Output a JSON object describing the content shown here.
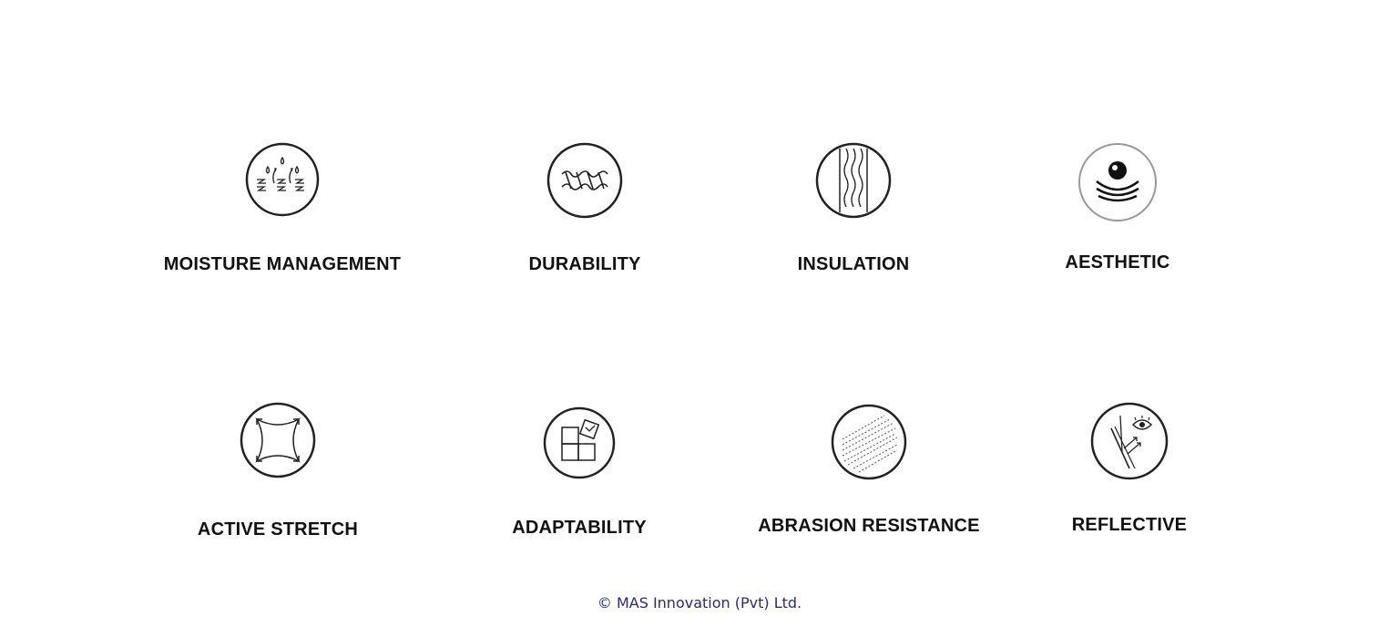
{
  "features": {
    "moisture": {
      "label": "MOISTURE MANAGEMENT",
      "icon": "moisture-management-icon"
    },
    "durability": {
      "label": "DURABILITY",
      "icon": "durability-icon"
    },
    "insulation": {
      "label": "INSULATION",
      "icon": "insulation-icon"
    },
    "aesthetic": {
      "label": "AESTHETIC",
      "icon": "aesthetic-icon"
    },
    "stretch": {
      "label": "ACTIVE STRETCH",
      "icon": "active-stretch-icon"
    },
    "adaptability": {
      "label": "ADAPTABILITY",
      "icon": "adaptability-icon"
    },
    "abrasion": {
      "label": "ABRASION RESISTANCE",
      "icon": "abrasion-resistance-icon"
    },
    "reflective": {
      "label": "REFLECTIVE",
      "icon": "reflective-icon"
    }
  },
  "footer": {
    "copyright": "© MAS Innovation (Pvt) Ltd."
  },
  "colors": {
    "text": "#111111",
    "icon_stroke": "#222222",
    "footer": "#2a2a7a"
  }
}
